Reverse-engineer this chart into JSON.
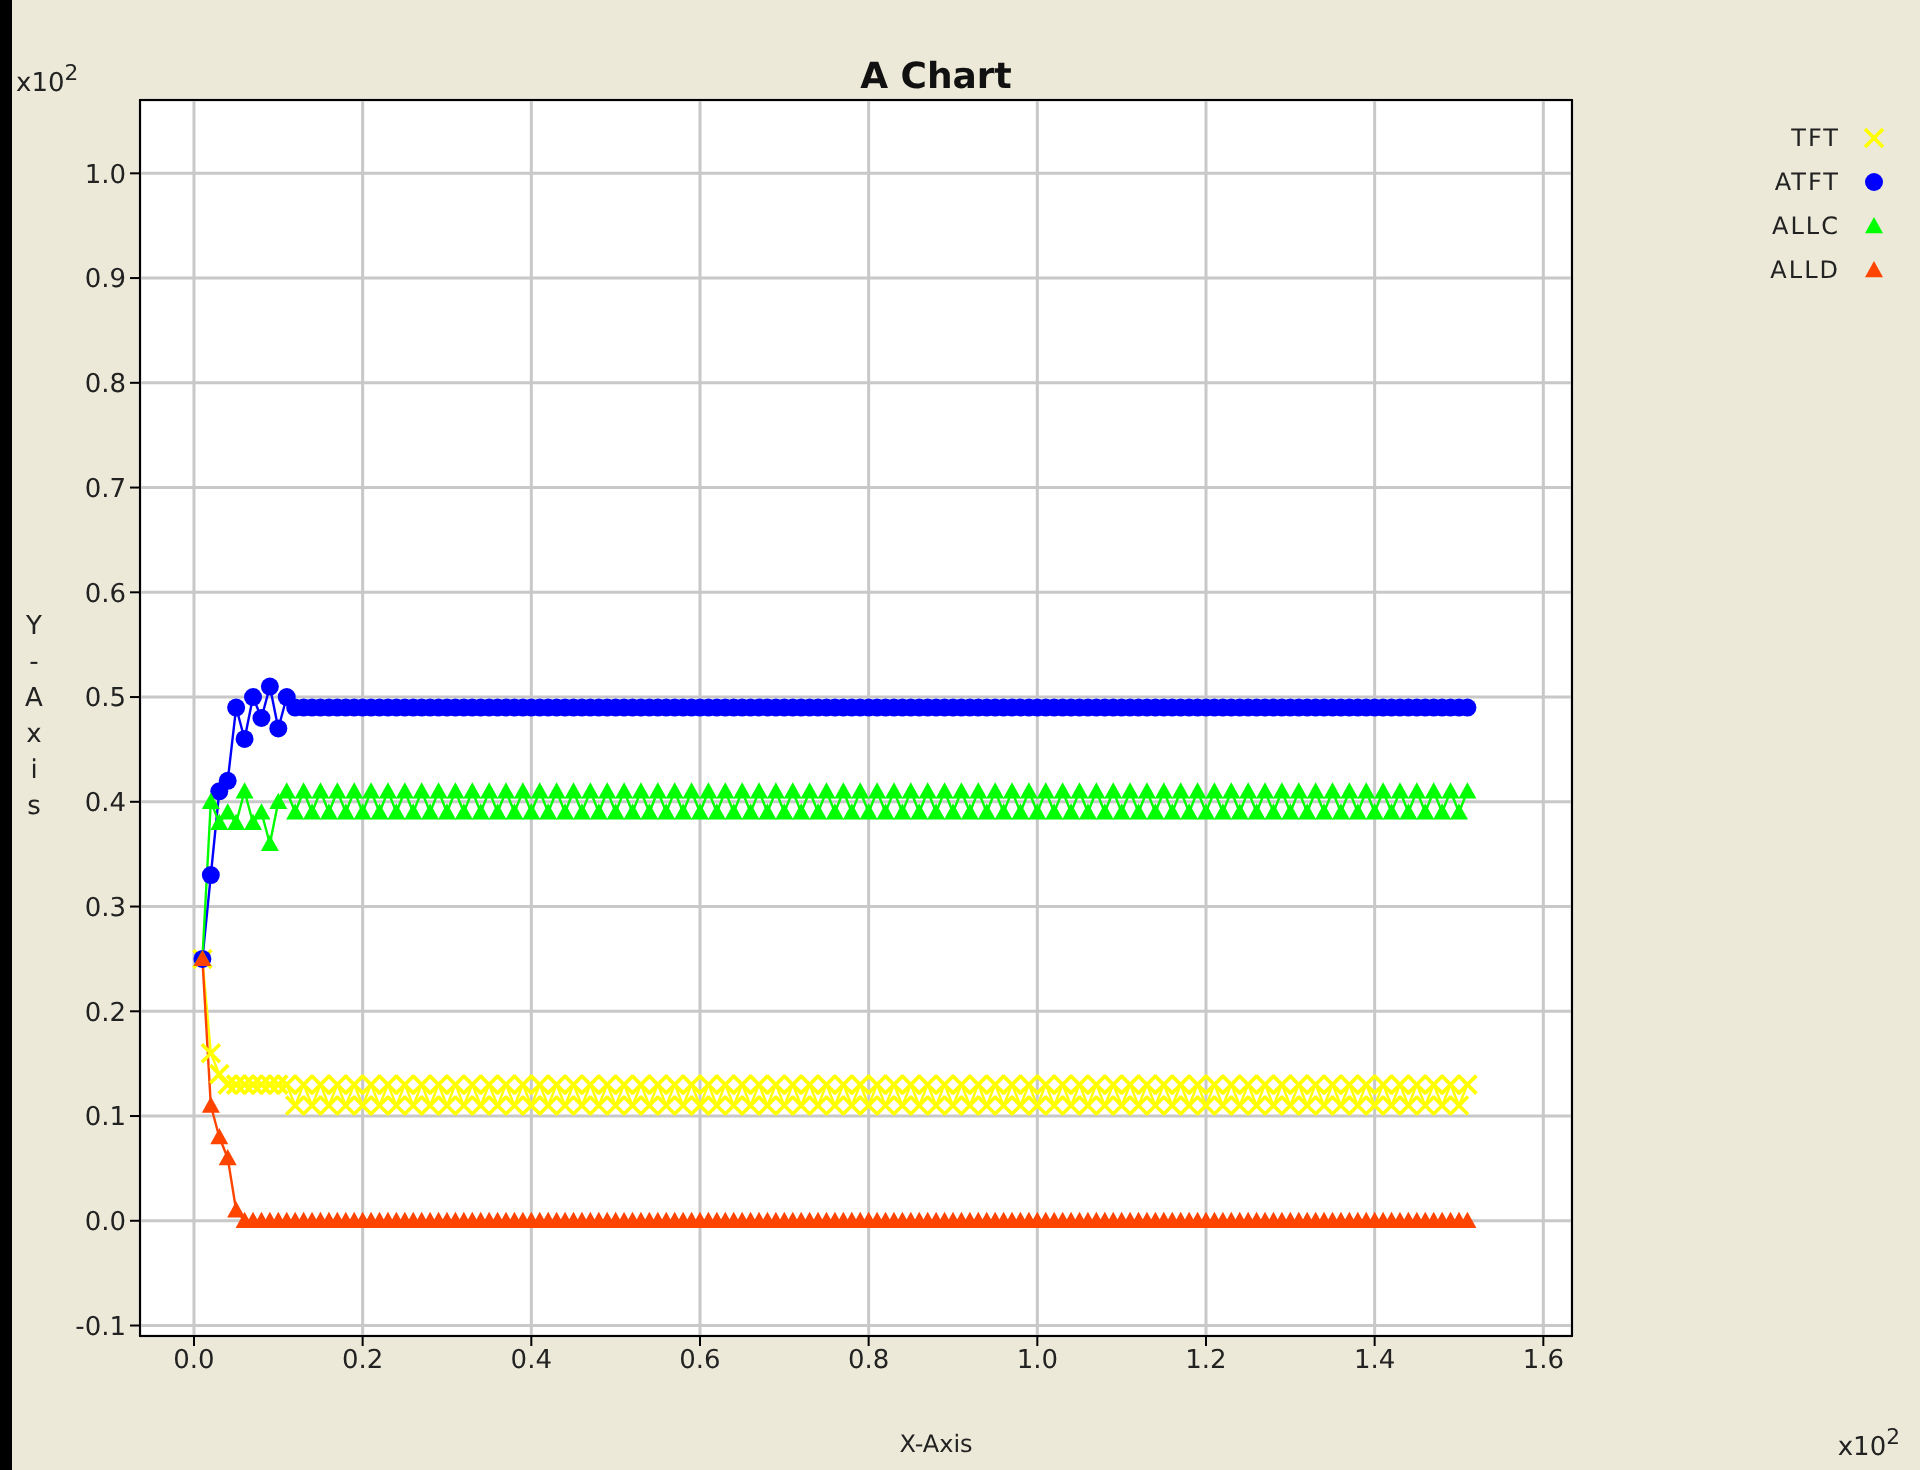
{
  "chart_data": {
    "type": "line",
    "title": "A Chart",
    "xlabel": "X-Axis",
    "ylabel": "Y-Axis",
    "annotations": [
      "x10$^{2}$",
      "x10$^{2}$"
    ],
    "xlim": [
      -0.064,
      1.634
    ],
    "ylim": [
      -0.11,
      1.07
    ],
    "xticks": [
      {
        "value": 0,
        "label": "0.0"
      },
      0.2,
      0.4,
      0.6,
      0.8,
      {
        "value": 1,
        "label": "1.0"
      },
      1.2,
      1.4,
      1.6
    ],
    "yticks": [
      -0.1,
      {
        "value": 0,
        "label": "0.0"
      },
      0.1,
      0.2,
      0.3,
      0.4,
      0.5,
      0.6,
      0.7,
      0.8,
      0.9,
      {
        "value": 1,
        "label": "1.0"
      }
    ],
    "grid": true,
    "legend": "top right",
    "line_style": "solid",
    "x": [
      0.01,
      0.02,
      0.03,
      0.04,
      0.05,
      0.06,
      0.07,
      0.08,
      0.09,
      0.1,
      0.11,
      0.12,
      0.13,
      0.14,
      0.15,
      0.16,
      0.17,
      0.18,
      0.19,
      0.2,
      0.21,
      0.22,
      0.23,
      0.24,
      0.25,
      0.26,
      0.27,
      0.28,
      0.29,
      0.3,
      0.31,
      0.32,
      0.33,
      0.34,
      0.35,
      0.36,
      0.37,
      0.38,
      0.39,
      0.4,
      0.41,
      0.42,
      0.43,
      0.44,
      0.45,
      0.46,
      0.47,
      0.48,
      0.49,
      0.5,
      0.51,
      0.52,
      0.53,
      0.54,
      0.55,
      0.56,
      0.57,
      0.58,
      0.59,
      0.6,
      0.61,
      0.62,
      0.63,
      0.64,
      0.65,
      0.66,
      0.67,
      0.68,
      0.69,
      0.7,
      0.71,
      0.72,
      0.73,
      0.74,
      0.75,
      0.76,
      0.77,
      0.78,
      0.79,
      0.8,
      0.81,
      0.82,
      0.83,
      0.84,
      0.85,
      0.86,
      0.87,
      0.88,
      0.89,
      0.9,
      0.91,
      0.92,
      0.93,
      0.94,
      0.95,
      0.96,
      0.97,
      0.98,
      0.99,
      1.0,
      1.01,
      1.02,
      1.03,
      1.04,
      1.05,
      1.06,
      1.07,
      1.08,
      1.09,
      1.1,
      1.11,
      1.12,
      1.13,
      1.14,
      1.15,
      1.16,
      1.17,
      1.18,
      1.19,
      1.2,
      1.21,
      1.22,
      1.23,
      1.24,
      1.25,
      1.26,
      1.27,
      1.28,
      1.29,
      1.3,
      1.31,
      1.32,
      1.33,
      1.34,
      1.35,
      1.36,
      1.37,
      1.38,
      1.39,
      1.4,
      1.41,
      1.42,
      1.43,
      1.44,
      1.45,
      1.46,
      1.47,
      1.48,
      1.49,
      1.5,
      1.51
    ],
    "series": [
      {
        "name": "TFT",
        "color": "#ffff00",
        "marker": "cross",
        "values": [
          0.25,
          0.16,
          0.14,
          0.13,
          0.13,
          0.13,
          0.13,
          0.13,
          0.13,
          0.13,
          0.13,
          0.11,
          0.13,
          0.11,
          0.13,
          0.11,
          0.13,
          0.11,
          0.13,
          0.11,
          0.13,
          0.11,
          0.13,
          0.11,
          0.13,
          0.11,
          0.13,
          0.11,
          0.13,
          0.11,
          0.13,
          0.11,
          0.13,
          0.11,
          0.13,
          0.11,
          0.13,
          0.11,
          0.13,
          0.11,
          0.13,
          0.11,
          0.13,
          0.11,
          0.13,
          0.11,
          0.13,
          0.11,
          0.13,
          0.11,
          0.13,
          0.11,
          0.13,
          0.11,
          0.13,
          0.11,
          0.13,
          0.11,
          0.13,
          0.11,
          0.13,
          0.11,
          0.13,
          0.11,
          0.13,
          0.11,
          0.13,
          0.11,
          0.13,
          0.11,
          0.13,
          0.11,
          0.13,
          0.11,
          0.13,
          0.11,
          0.13,
          0.11,
          0.13,
          0.11,
          0.13,
          0.11,
          0.13,
          0.11,
          0.13,
          0.11,
          0.13,
          0.11,
          0.13,
          0.11,
          0.13,
          0.11,
          0.13,
          0.11,
          0.13,
          0.11,
          0.13,
          0.11,
          0.13,
          0.11,
          0.13,
          0.11,
          0.13,
          0.11,
          0.13,
          0.11,
          0.13,
          0.11,
          0.13,
          0.11,
          0.13,
          0.11,
          0.13,
          0.11,
          0.13,
          0.11,
          0.13,
          0.11,
          0.13,
          0.11,
          0.13,
          0.11,
          0.13,
          0.11,
          0.13,
          0.11,
          0.13,
          0.11,
          0.13,
          0.11,
          0.13,
          0.11,
          0.13,
          0.11,
          0.13,
          0.11,
          0.13,
          0.11,
          0.13,
          0.11,
          0.13,
          0.11,
          0.13,
          0.11,
          0.13,
          0.11,
          0.13,
          0.11,
          0.13,
          0.11,
          0.13
        ]
      },
      {
        "name": "ATFT",
        "color": "#0000ff",
        "marker": "circle",
        "values": [
          0.25,
          0.33,
          0.41,
          0.42,
          0.49,
          0.46,
          0.5,
          0.48,
          0.51,
          0.47,
          0.5,
          0.49,
          0.49,
          0.49,
          0.49,
          0.49,
          0.49,
          0.49,
          0.49,
          0.49,
          0.49,
          0.49,
          0.49,
          0.49,
          0.49,
          0.49,
          0.49,
          0.49,
          0.49,
          0.49,
          0.49,
          0.49,
          0.49,
          0.49,
          0.49,
          0.49,
          0.49,
          0.49,
          0.49,
          0.49,
          0.49,
          0.49,
          0.49,
          0.49,
          0.49,
          0.49,
          0.49,
          0.49,
          0.49,
          0.49,
          0.49,
          0.49,
          0.49,
          0.49,
          0.49,
          0.49,
          0.49,
          0.49,
          0.49,
          0.49,
          0.49,
          0.49,
          0.49,
          0.49,
          0.49,
          0.49,
          0.49,
          0.49,
          0.49,
          0.49,
          0.49,
          0.49,
          0.49,
          0.49,
          0.49,
          0.49,
          0.49,
          0.49,
          0.49,
          0.49,
          0.49,
          0.49,
          0.49,
          0.49,
          0.49,
          0.49,
          0.49,
          0.49,
          0.49,
          0.49,
          0.49,
          0.49,
          0.49,
          0.49,
          0.49,
          0.49,
          0.49,
          0.49,
          0.49,
          0.49,
          0.49,
          0.49,
          0.49,
          0.49,
          0.49,
          0.49,
          0.49,
          0.49,
          0.49,
          0.49,
          0.49,
          0.49,
          0.49,
          0.49,
          0.49,
          0.49,
          0.49,
          0.49,
          0.49,
          0.49,
          0.49,
          0.49,
          0.49,
          0.49,
          0.49,
          0.49,
          0.49,
          0.49,
          0.49,
          0.49,
          0.49,
          0.49,
          0.49,
          0.49,
          0.49,
          0.49,
          0.49,
          0.49,
          0.49,
          0.49,
          0.49,
          0.49,
          0.49,
          0.49,
          0.49,
          0.49,
          0.49,
          0.49,
          0.49,
          0.49,
          0.49
        ]
      },
      {
        "name": "ALLC",
        "color": "#00ff00",
        "marker": "triangle",
        "values": [
          0.25,
          0.4,
          0.38,
          0.39,
          0.38,
          0.41,
          0.38,
          0.39,
          0.36,
          0.4,
          0.41,
          0.39,
          0.41,
          0.39,
          0.41,
          0.39,
          0.41,
          0.39,
          0.41,
          0.39,
          0.41,
          0.39,
          0.41,
          0.39,
          0.41,
          0.39,
          0.41,
          0.39,
          0.41,
          0.39,
          0.41,
          0.39,
          0.41,
          0.39,
          0.41,
          0.39,
          0.41,
          0.39,
          0.41,
          0.39,
          0.41,
          0.39,
          0.41,
          0.39,
          0.41,
          0.39,
          0.41,
          0.39,
          0.41,
          0.39,
          0.41,
          0.39,
          0.41,
          0.39,
          0.41,
          0.39,
          0.41,
          0.39,
          0.41,
          0.39,
          0.41,
          0.39,
          0.41,
          0.39,
          0.41,
          0.39,
          0.41,
          0.39,
          0.41,
          0.39,
          0.41,
          0.39,
          0.41,
          0.39,
          0.41,
          0.39,
          0.41,
          0.39,
          0.41,
          0.39,
          0.41,
          0.39,
          0.41,
          0.39,
          0.41,
          0.39,
          0.41,
          0.39,
          0.41,
          0.39,
          0.41,
          0.39,
          0.41,
          0.39,
          0.41,
          0.39,
          0.41,
          0.39,
          0.41,
          0.39,
          0.41,
          0.39,
          0.41,
          0.39,
          0.41,
          0.39,
          0.41,
          0.39,
          0.41,
          0.39,
          0.41,
          0.39,
          0.41,
          0.39,
          0.41,
          0.39,
          0.41,
          0.39,
          0.41,
          0.39,
          0.41,
          0.39,
          0.41,
          0.39,
          0.41,
          0.39,
          0.41,
          0.39,
          0.41,
          0.39,
          0.41,
          0.39,
          0.41,
          0.39,
          0.41,
          0.39,
          0.41,
          0.39,
          0.41,
          0.39,
          0.41,
          0.39,
          0.41,
          0.39,
          0.41,
          0.39,
          0.41,
          0.39,
          0.41,
          0.39,
          0.41
        ]
      },
      {
        "name": "ALLD",
        "color": "#ff4400",
        "marker": "triangle",
        "values": [
          0.25,
          0.11,
          0.08,
          0.06,
          0.01,
          0,
          0,
          0,
          0,
          0,
          0,
          0,
          0,
          0,
          0,
          0,
          0,
          0,
          0,
          0,
          0,
          0,
          0,
          0,
          0,
          0,
          0,
          0,
          0,
          0,
          0,
          0,
          0,
          0,
          0,
          0,
          0,
          0,
          0,
          0,
          0,
          0,
          0,
          0,
          0,
          0,
          0,
          0,
          0,
          0,
          0,
          0,
          0,
          0,
          0,
          0,
          0,
          0,
          0,
          0,
          0,
          0,
          0,
          0,
          0,
          0,
          0,
          0,
          0,
          0,
          0,
          0,
          0,
          0,
          0,
          0,
          0,
          0,
          0,
          0,
          0,
          0,
          0,
          0,
          0,
          0,
          0,
          0,
          0,
          0,
          0,
          0,
          0,
          0,
          0,
          0,
          0,
          0,
          0,
          0,
          0,
          0,
          0,
          0,
          0,
          0,
          0,
          0,
          0,
          0,
          0,
          0,
          0,
          0,
          0,
          0,
          0,
          0,
          0,
          0,
          0,
          0,
          0,
          0,
          0,
          0,
          0,
          0,
          0,
          0,
          0,
          0,
          0,
          0,
          0,
          0,
          0,
          0,
          0,
          0,
          0,
          0,
          0,
          0,
          0,
          0,
          0,
          0,
          0,
          0,
          0
        ]
      }
    ]
  }
}
